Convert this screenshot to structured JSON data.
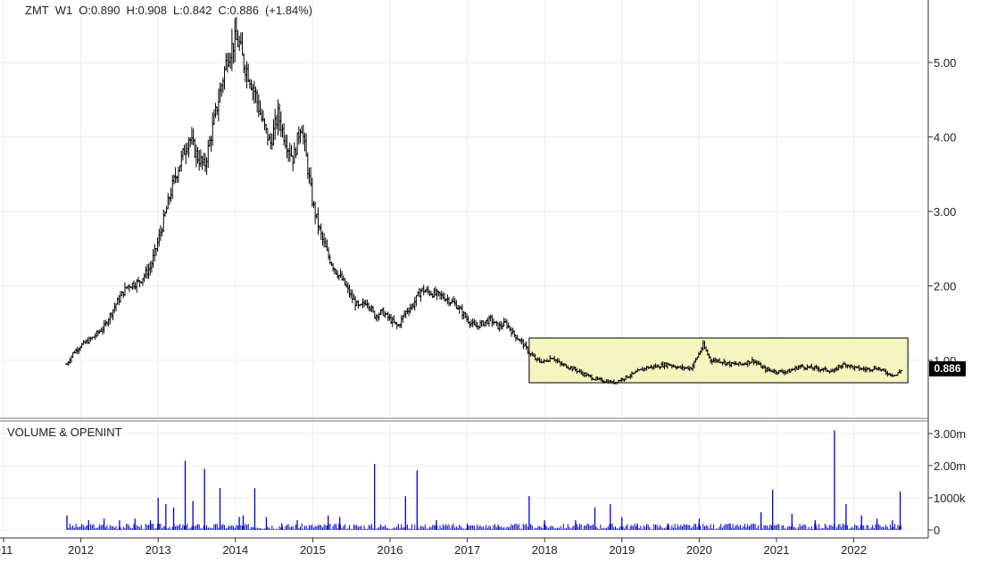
{
  "header": {
    "symbol": "ZMT",
    "timeframe": "W1",
    "open": "O:0.890",
    "high": "H:0.908",
    "low": "L:0.842",
    "close": "C:0.886",
    "change": "(+1.84%)"
  },
  "volume_panel_title": "VOLUME & OPENINT",
  "last_price_label": "0.886",
  "colors": {
    "candle": "#000000",
    "volume_bar": "#0000cc",
    "highlight_fill": "#f5f5c0",
    "highlight_stroke": "#000000",
    "grid": "#ececec"
  },
  "chart_data": [
    {
      "type": "ohlc",
      "symbol": "ZMT",
      "y_ticks": [
        "1.00",
        "2.00",
        "3.00",
        "4.00",
        "5.00"
      ],
      "ylim": [
        0.5,
        5.5
      ],
      "x_ticks": [
        "011",
        "2012",
        "2013",
        "2014",
        "2015",
        "2016",
        "2017",
        "2018",
        "2019",
        "2020",
        "2021",
        "2022",
        "20"
      ],
      "xlim": [
        2011.0,
        2023.0
      ],
      "grid": true,
      "close_series": {
        "x": [
          2011.82,
          2011.9,
          2012.0,
          2012.15,
          2012.3,
          2012.45,
          2012.6,
          2012.75,
          2012.9,
          2013.0,
          2013.1,
          2013.2,
          2013.3,
          2013.4,
          2013.5,
          2013.6,
          2013.7,
          2013.8,
          2013.9,
          2014.0,
          2014.05,
          2014.1,
          2014.15,
          2014.25,
          2014.35,
          2014.45,
          2014.55,
          2014.65,
          2014.75,
          2014.85,
          2015.0,
          2015.1,
          2015.2,
          2015.3,
          2015.4,
          2015.5,
          2015.6,
          2015.7,
          2015.8,
          2015.9,
          2016.0,
          2016.1,
          2016.2,
          2016.3,
          2016.4,
          2016.55,
          2016.7,
          2016.85,
          2017.0,
          2017.1,
          2017.2,
          2017.3,
          2017.4,
          2017.5,
          2017.6,
          2017.7,
          2017.8,
          2017.9,
          2018.0,
          2018.1,
          2018.2,
          2018.35,
          2018.5,
          2018.65,
          2018.8,
          2018.9,
          2019.0,
          2019.15,
          2019.3,
          2019.45,
          2019.6,
          2019.75,
          2019.9,
          2020.0,
          2020.05,
          2020.15,
          2020.25,
          2020.4,
          2020.55,
          2020.7,
          2020.85,
          2021.0,
          2021.15,
          2021.3,
          2021.45,
          2021.6,
          2021.75,
          2021.8,
          2021.9,
          2022.0,
          2022.15,
          2022.3,
          2022.45,
          2022.55,
          2022.62
        ],
        "y": [
          0.95,
          1.1,
          1.2,
          1.3,
          1.45,
          1.75,
          2.0,
          2.05,
          2.25,
          2.6,
          3.0,
          3.4,
          3.7,
          4.0,
          3.75,
          3.6,
          4.1,
          4.6,
          5.1,
          5.3,
          5.25,
          5.0,
          4.9,
          4.6,
          4.2,
          3.9,
          4.3,
          3.95,
          3.7,
          4.2,
          3.1,
          2.7,
          2.4,
          2.2,
          2.05,
          1.85,
          1.7,
          1.8,
          1.6,
          1.65,
          1.55,
          1.45,
          1.65,
          1.75,
          1.95,
          1.9,
          1.85,
          1.75,
          1.55,
          1.45,
          1.5,
          1.55,
          1.45,
          1.5,
          1.35,
          1.25,
          1.1,
          1.0,
          0.98,
          1.05,
          0.95,
          0.9,
          0.82,
          0.75,
          0.72,
          0.7,
          0.75,
          0.82,
          0.9,
          0.92,
          0.95,
          0.9,
          0.9,
          1.1,
          1.2,
          1.0,
          1.0,
          0.95,
          0.95,
          1.0,
          0.88,
          0.85,
          0.85,
          0.92,
          0.9,
          0.88,
          0.85,
          0.92,
          0.95,
          0.9,
          0.88,
          0.9,
          0.82,
          0.8,
          0.886
        ]
      },
      "highlight_box": {
        "x_range": [
          2017.8,
          2022.7
        ],
        "y_range": [
          0.7,
          1.3
        ]
      },
      "last_price": 0.886
    },
    {
      "type": "bar",
      "title": "VOLUME & OPENINT",
      "y_ticks": [
        "0",
        "1000k",
        "2.00m",
        "3.00m"
      ],
      "ylim": [
        0,
        3000000
      ],
      "x": [
        2011.82,
        2012.1,
        2012.3,
        2012.5,
        2012.7,
        2012.9,
        2013.0,
        2013.1,
        2013.2,
        2013.35,
        2013.45,
        2013.6,
        2013.8,
        2014.05,
        2014.1,
        2014.25,
        2014.4,
        2014.6,
        2014.8,
        2015.2,
        2015.35,
        2015.8,
        2016.2,
        2016.35,
        2016.6,
        2017.0,
        2017.4,
        2017.8,
        2018.0,
        2018.4,
        2018.65,
        2018.85,
        2019.0,
        2019.2,
        2019.6,
        2020.0,
        2020.4,
        2020.8,
        2020.95,
        2021.2,
        2021.5,
        2021.75,
        2021.9,
        2022.1,
        2022.3,
        2022.5,
        2022.6
      ],
      "values": [
        450000,
        300000,
        350000,
        300000,
        350000,
        300000,
        1000000,
        800000,
        700000,
        2150000,
        900000,
        1900000,
        1300000,
        400000,
        450000,
        1300000,
        400000,
        200000,
        300000,
        450000,
        400000,
        2050000,
        1050000,
        1850000,
        300000,
        200000,
        150000,
        1050000,
        300000,
        300000,
        700000,
        800000,
        400000,
        200000,
        200000,
        350000,
        200000,
        550000,
        1250000,
        500000,
        300000,
        3100000,
        800000,
        450000,
        350000,
        300000,
        1200000
      ]
    }
  ]
}
